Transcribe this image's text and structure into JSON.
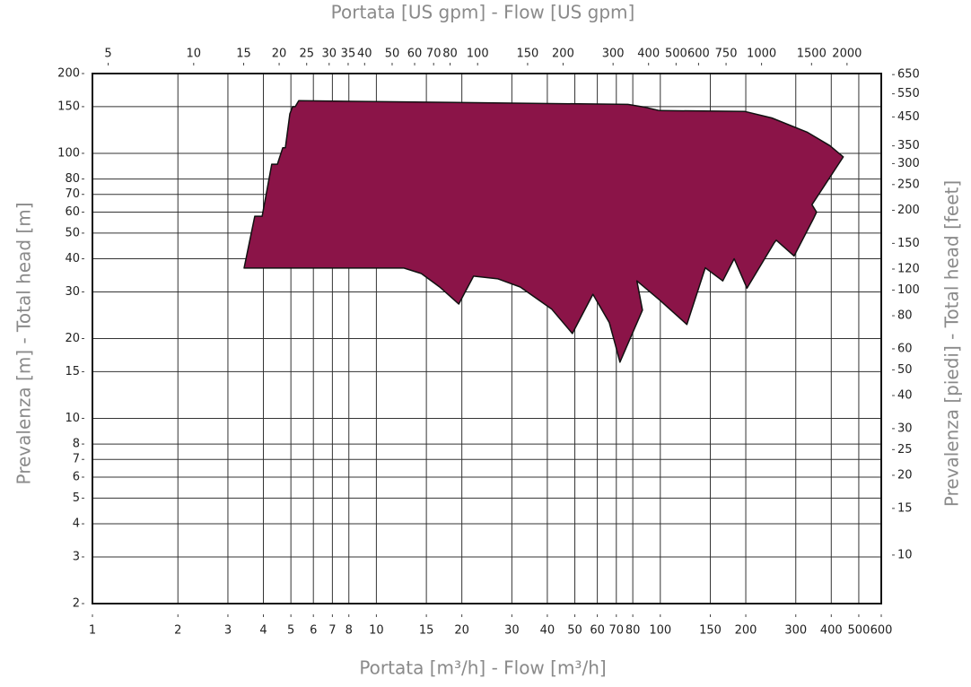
{
  "chart_data": {
    "type": "area",
    "xlabel": "Portata [m³/h] - Flow [m³/h]",
    "x2label": "Portata [US gpm] - Flow [US gpm]",
    "ylabel": "Prevalenza [m] - Total head [m]",
    "y2label": "Prevalenza [piedi] - Total head [feet]",
    "color": "#8b1448",
    "x": [
      3.42,
      3.73,
      3.96,
      4.28,
      4.48,
      4.68,
      4.78,
      4.96,
      5.07,
      5.18,
      5.33,
      76.9,
      89.0,
      99.3,
      198,
      247,
      330,
      395,
      441,
      342,
      355,
      347,
      296,
      256,
      252,
      202,
      182,
      166,
      144,
      124,
      99.3,
      82.7,
      86.5,
      72.1,
      69.5,
      66.1,
      57.9,
      49.0,
      41.5,
      32.1,
      26.8,
      22.0,
      19.5,
      16.7,
      14.4,
      12.5
    ],
    "values": [
      36.9,
      57.9,
      57.9,
      91,
      91,
      105,
      105,
      141,
      150,
      150,
      158,
      153,
      149,
      145,
      144,
      136,
      120,
      107,
      97,
      64,
      60,
      57,
      41,
      47,
      46,
      31,
      40,
      33,
      37,
      22.6,
      28,
      33,
      25.6,
      16.3,
      18.9,
      23,
      29.4,
      20.9,
      25.8,
      31.3,
      33.6,
      34.4,
      27,
      31.3,
      35.2,
      36.9
    ],
    "xscale": "log",
    "yscale": "log",
    "xlim": [
      1,
      600
    ],
    "ylim": [
      2,
      200
    ],
    "x2lim": [
      4.4,
      2640
    ],
    "y2lim": [
      6.56,
      656
    ],
    "xticks": [
      1,
      2,
      3,
      4,
      5,
      6,
      7,
      8,
      10,
      15,
      20,
      30,
      40,
      50,
      60,
      70,
      80,
      100,
      150,
      200,
      300,
      400,
      500,
      600
    ],
    "yticks": [
      2,
      3,
      4,
      5,
      6,
      7,
      8,
      10,
      15,
      20,
      30,
      40,
      50,
      60,
      70,
      80,
      100,
      150,
      200
    ],
    "x2ticks": [
      5,
      10,
      15,
      20,
      25,
      30,
      35,
      40,
      50,
      60,
      70,
      80,
      100,
      150,
      200,
      300,
      400,
      500,
      600,
      750,
      1000,
      1500,
      2000
    ],
    "y2ticks": [
      650,
      550,
      450,
      350,
      300,
      250,
      200,
      150,
      120,
      100,
      80,
      60,
      50,
      40,
      30,
      25,
      20,
      15,
      10
    ],
    "grid": true
  }
}
